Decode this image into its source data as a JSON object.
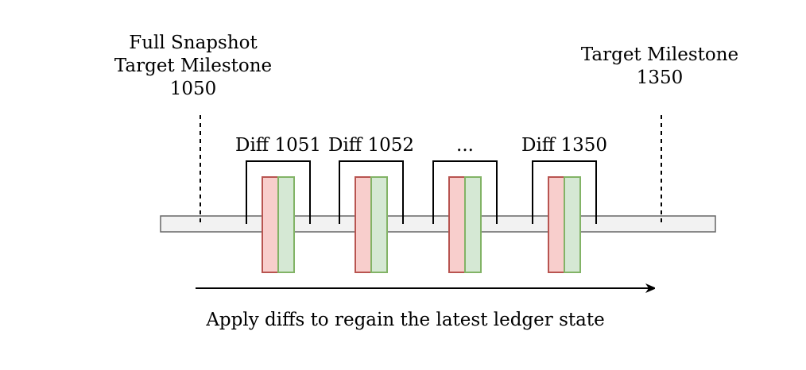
{
  "snapshot": {
    "line1": "Full Snapshot",
    "line2": "Target Milestone",
    "line3": "1050"
  },
  "target": {
    "line1": "Target Milestone",
    "line2": "1350"
  },
  "diffs": [
    {
      "label": "Diff 1051"
    },
    {
      "label": "Diff 1052"
    },
    {
      "label": "..."
    },
    {
      "label": "Diff 1350"
    }
  ],
  "arrow_caption": "Apply diffs to regain the latest ledger state",
  "colors": {
    "timeline_fill": "#f2f2f2",
    "timeline_stroke": "#666666",
    "removed_fill": "#f8cecc",
    "removed_stroke": "#b85450",
    "added_fill": "#d5e8d4",
    "added_stroke": "#82b366",
    "line": "#000000"
  }
}
